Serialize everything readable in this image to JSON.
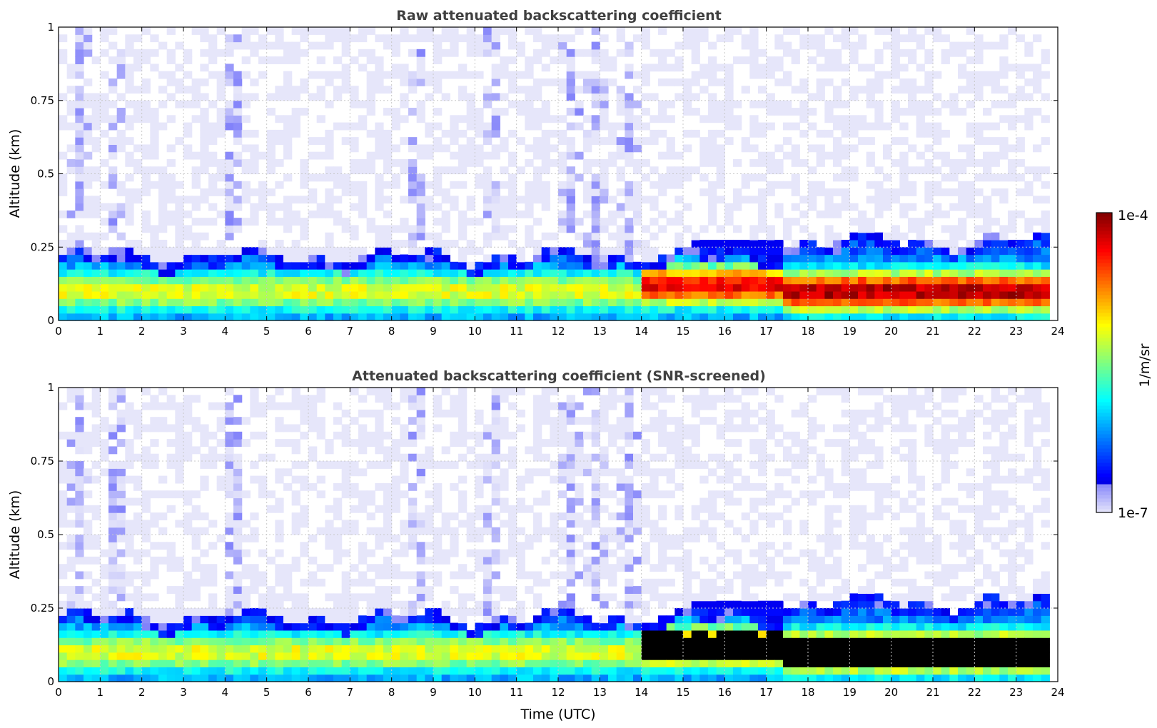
{
  "chart_data": [
    {
      "type": "heatmap",
      "title": "Raw attenuated backscattering coefficient",
      "xlabel": "",
      "ylabel": "Altitude (km)",
      "xlim": [
        0,
        24
      ],
      "ylim": [
        0,
        1
      ],
      "xticks": [
        "0",
        "1",
        "2",
        "3",
        "4",
        "5",
        "6",
        "7",
        "8",
        "9",
        "10",
        "11",
        "12",
        "13",
        "14",
        "15",
        "16",
        "17",
        "18",
        "19",
        "20",
        "21",
        "22",
        "23",
        "24"
      ],
      "yticks": [
        "0",
        "0.25",
        "0.5",
        "0.75",
        "1"
      ],
      "grid": true,
      "data_end_time": 23.7,
      "layers": [
        {
          "time": [
            0,
            14
          ],
          "top_km": 0.19,
          "bottom_km": 0.0,
          "peak_km": 0.1,
          "max_log10_beta": -5.2
        },
        {
          "time": [
            14,
            17.4
          ],
          "top_km": 0.2,
          "bottom_km": 0.0,
          "peak_km": 0.12,
          "max_log10_beta": -4.3
        },
        {
          "time": [
            17.4,
            23.7
          ],
          "top_km": 0.24,
          "bottom_km": 0.0,
          "peak_km": 0.1,
          "max_log10_beta": -4.1
        }
      ],
      "rain_columns_utc": [
        0.5,
        1.4,
        4.2,
        8.6,
        10.4,
        12.3,
        12.9,
        13.7
      ],
      "elevated_layer": {
        "time": [
          15.2,
          17.3
        ],
        "height_km": 0.24
      }
    },
    {
      "type": "heatmap",
      "title": "Attenuated backscattering coefficient (SNR-screened)",
      "xlabel": "Time (UTC)",
      "ylabel": "Altitude (km)",
      "xlim": [
        0,
        24
      ],
      "ylim": [
        0,
        1
      ],
      "xticks": [
        "0",
        "1",
        "2",
        "3",
        "4",
        "5",
        "6",
        "7",
        "8",
        "9",
        "10",
        "11",
        "12",
        "13",
        "14",
        "15",
        "16",
        "17",
        "18",
        "19",
        "20",
        "21",
        "22",
        "23",
        "24"
      ],
      "yticks": [
        "0",
        "0.25",
        "0.5",
        "0.75",
        "1"
      ],
      "grid": true,
      "data_end_time": 23.7,
      "screened_values_color": "#000000"
    }
  ],
  "colorbar": {
    "label": "1/m/sr",
    "min_label": "1e-7",
    "max_label": "1e-4",
    "scale": "log",
    "colormap": "jet",
    "range": [
      -7,
      -4
    ]
  }
}
